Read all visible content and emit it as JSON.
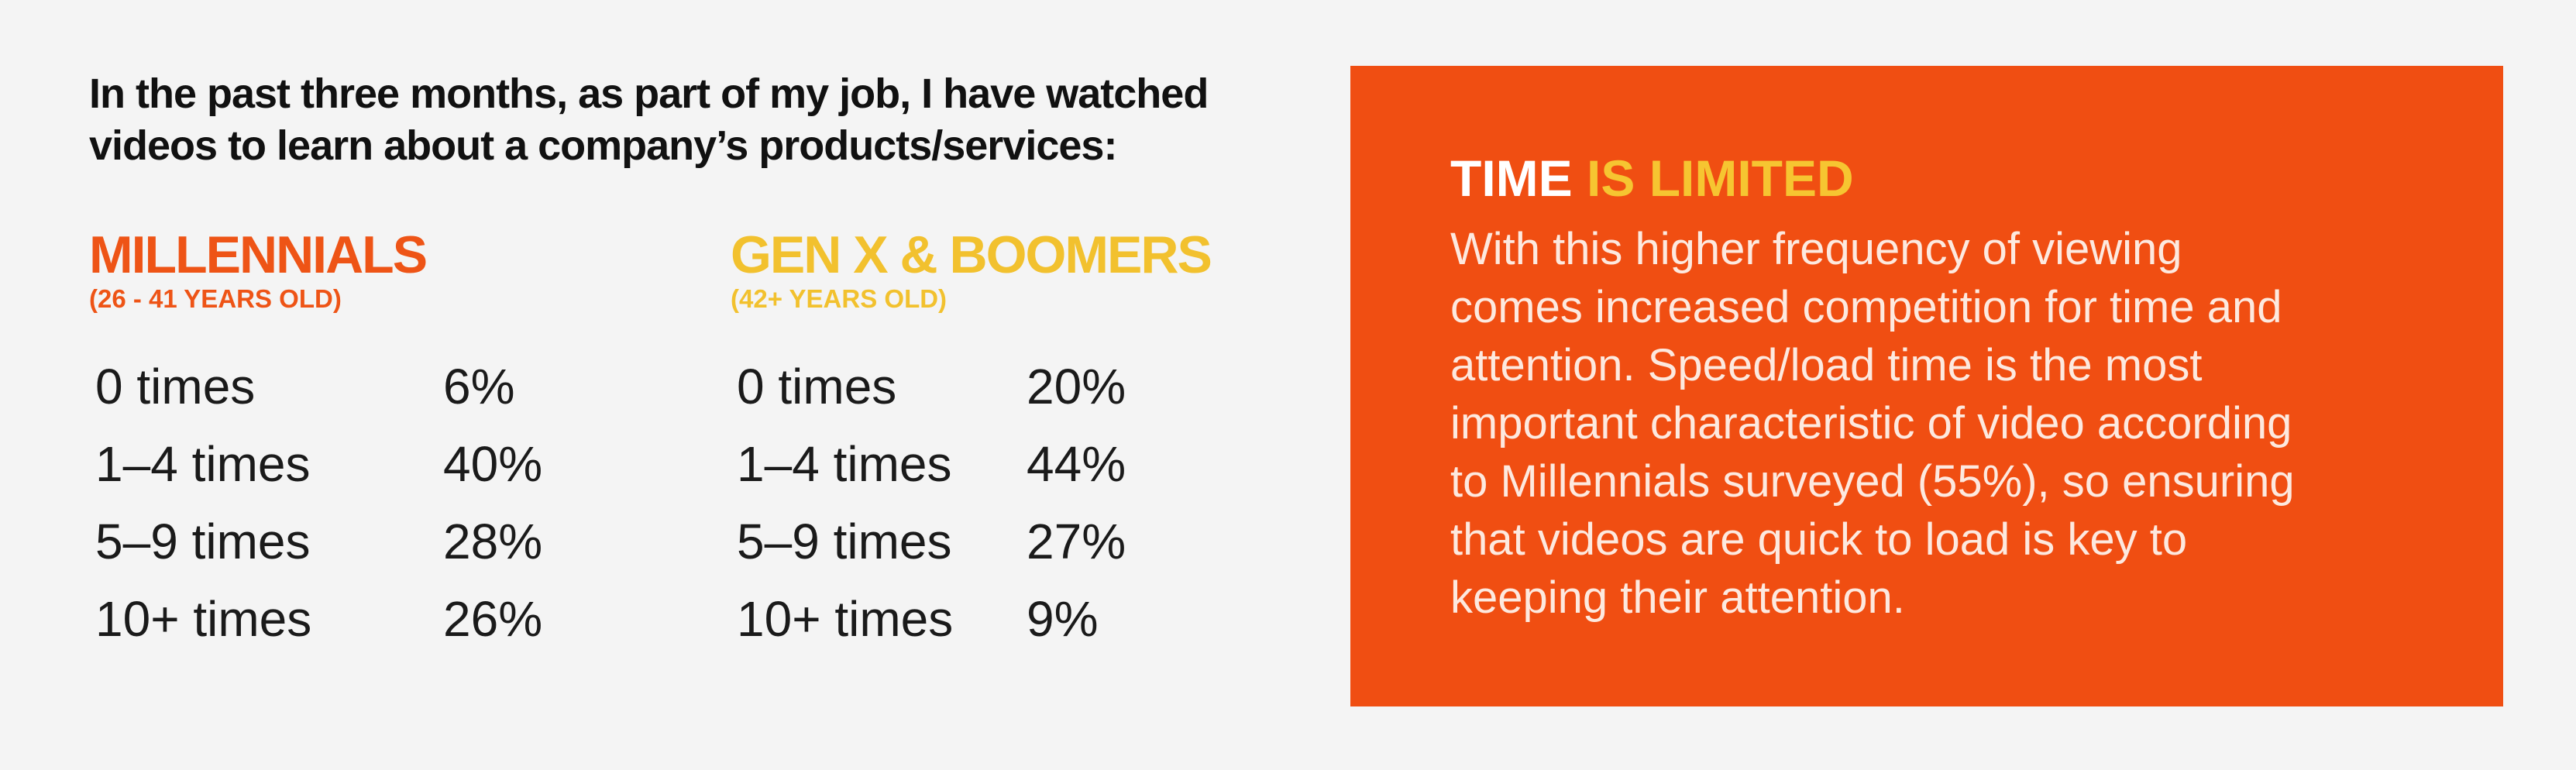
{
  "question": [
    "In the past three months, as part of my job, I have watched",
    "videos to learn about a company’s products/services:"
  ],
  "groups": [
    {
      "title": "MILLENNIALS",
      "subtitle": "(26 - 41 YEARS OLD)",
      "rows": [
        [
          "0 times",
          "6%"
        ],
        [
          "1–4 times",
          "40%"
        ],
        [
          "5–9 times",
          "28%"
        ],
        [
          "10+ times",
          "26%"
        ]
      ]
    },
    {
      "title": "GEN X & BOOMERS",
      "subtitle": "(42+ YEARS OLD)",
      "rows": [
        [
          "0 times",
          "20%"
        ],
        [
          "1–4 times",
          "44%"
        ],
        [
          "5–9 times",
          "27%"
        ],
        [
          "10+ times",
          "9%"
        ]
      ]
    }
  ],
  "callout": {
    "title_lead": "TIME",
    "title_accent": "IS LIMITED",
    "body": [
      "With this higher frequency of viewing",
      "comes increased competition for time and",
      "attention. Speed/load time is the most",
      "important characteristic of video according",
      "to Millennials surveyed (55%), so ensuring",
      "that videos are quick to load is key to",
      "keeping their attention."
    ]
  }
}
